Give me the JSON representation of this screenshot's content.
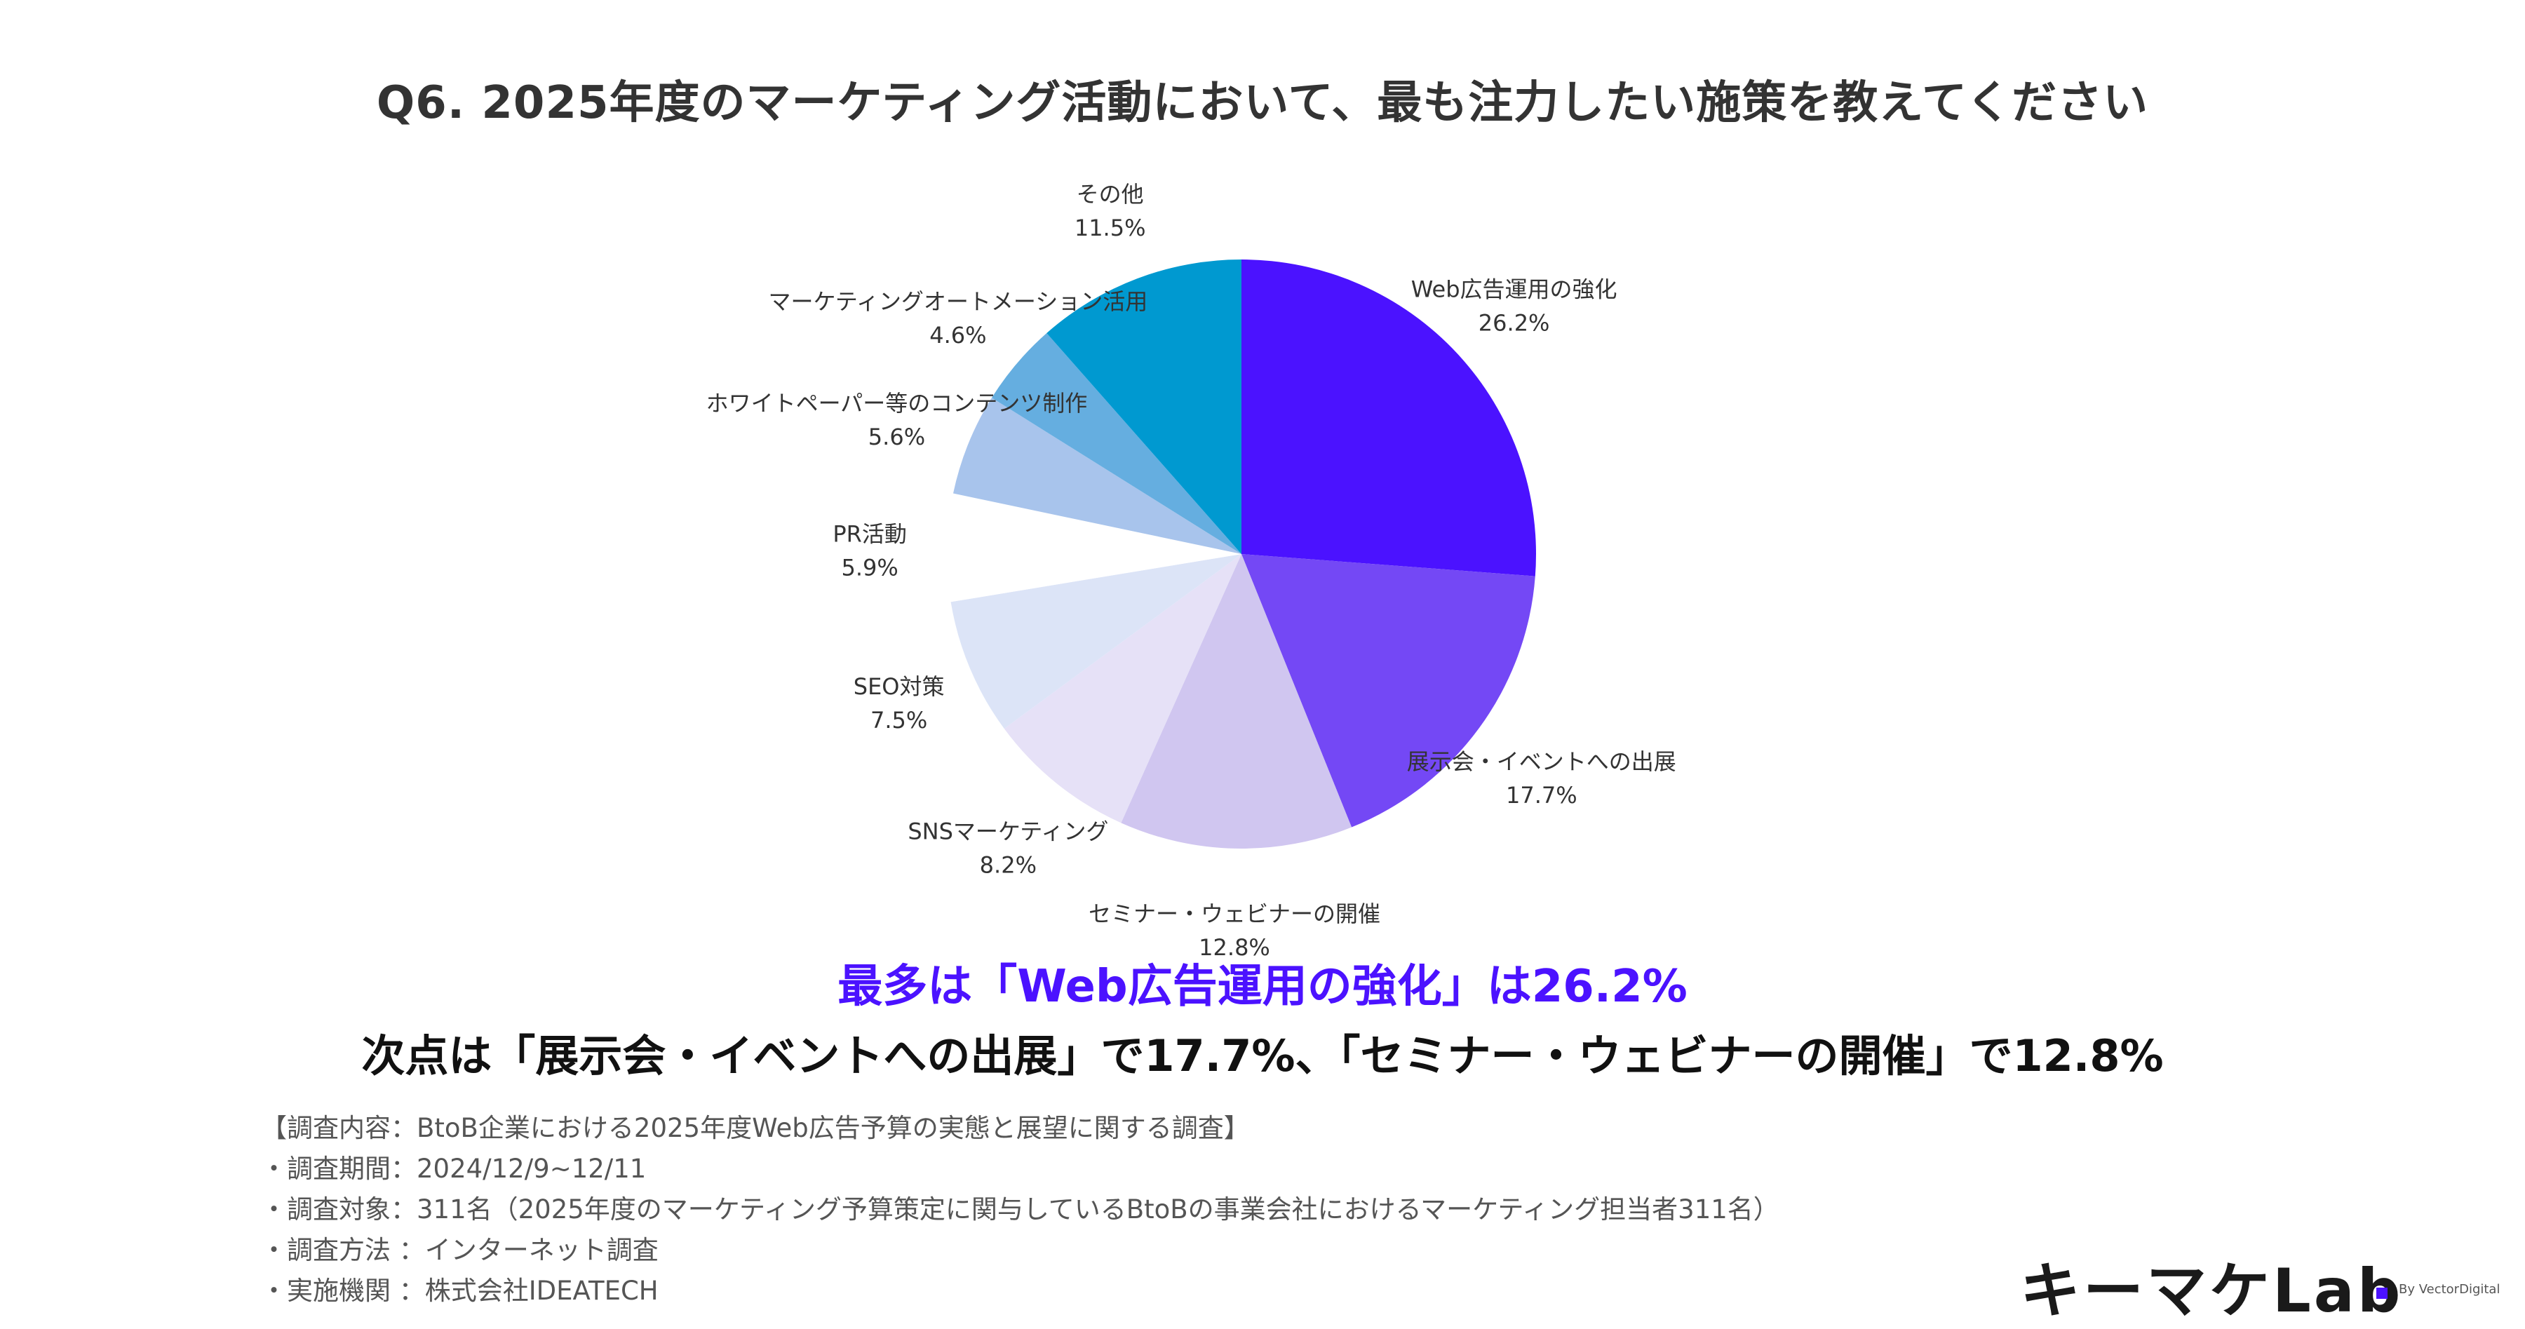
{
  "title": "Q6. 2025年度のマーケティング活動において、最も注力したい施策を教えてください",
  "headline": {
    "main_prefix": "最多は「Web広告運用の強化」は26.2%",
    "main_color": "#4B12FF",
    "secondary": "次点は「展示会・イベントへの出展」で17.7%、「セミナー・ウェビナーの開催」で12.8%"
  },
  "chart_data": {
    "type": "pie",
    "slices": [
      {
        "label": "Web広告運用の強化",
        "value": 26.2,
        "value_label": "26.2%",
        "color": "#4B12FF"
      },
      {
        "label": "展示会・イベントへの出展",
        "value": 17.7,
        "value_label": "17.7%",
        "color": "#7448F5"
      },
      {
        "label": "セミナー・ウェビナーの開催",
        "value": 12.8,
        "value_label": "12.8%",
        "color": "#D0C6F0"
      },
      {
        "label": "SNSマーケティング",
        "value": 8.2,
        "value_label": "8.2%",
        "color": "#E6E1F7"
      },
      {
        "label": "SEO対策",
        "value": 7.5,
        "value_label": "7.5%",
        "color": "#DCE4F7"
      },
      {
        "label": "PR活動",
        "value": 5.9,
        "value_label": "5.9%",
        "color": "#FFFFFF"
      },
      {
        "label": "ホワイトペーパー等のコンテンツ制作",
        "value": 5.6,
        "value_label": "5.6%",
        "color": "#A8C4EC"
      },
      {
        "label": "マーケティングオートメーション活用",
        "value": 4.6,
        "value_label": "4.6%",
        "color": "#65AEE0"
      },
      {
        "label": "その他",
        "value": 11.5,
        "value_label": "11.5%",
        "color": "#0099D0"
      }
    ]
  },
  "survey": {
    "lines": [
      "【調査内容：BtoB企業における2025年度Web広告予算の実態と展望に関する調査】",
      "・調査期間：2024/12/9~12/11",
      "・調査対象：311名（2025年度のマーケティング予算策定に関与しているBtoBの事業会社におけるマーケティング担当者311名）",
      "・調査方法 ：インターネット調査",
      "・実施機関 ：株式会社IDEATECH"
    ]
  },
  "logo": {
    "text": "キーマケLab",
    "sub": "By VectorDigital"
  }
}
